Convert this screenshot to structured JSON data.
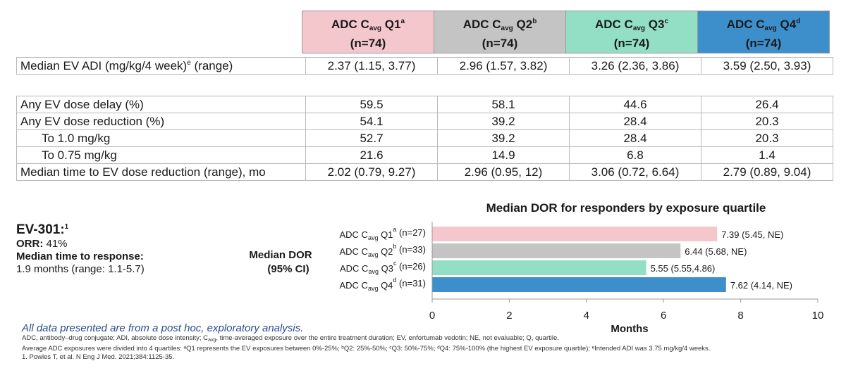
{
  "table": {
    "headers": [
      {
        "pre": "ADC C",
        "sub": "avg",
        "q": " Q1",
        "sup": "a",
        "n": "(n=74)",
        "bg": "#f4c7cd"
      },
      {
        "pre": "ADC C",
        "sub": "avg",
        "q": " Q2",
        "sup": "b",
        "n": "(n=74)",
        "bg": "#c4c4c4"
      },
      {
        "pre": "ADC C",
        "sub": "avg",
        "q": " Q3",
        "sup": "c",
        "n": "(n=74)",
        "bg": "#93dfc6"
      },
      {
        "pre": "ADC C",
        "sub": "avg",
        "q": " Q4",
        "sup": "d",
        "n": "(n=74)",
        "bg": "#3d8fcb"
      }
    ],
    "adi_row": {
      "label": "Median EV ADI (mg/kg/4 week)",
      "label_sup": "e",
      "label_post": " (range)",
      "values": [
        "2.37 (1.15, 3.77)",
        "2.96 (1.57, 3.82)",
        "3.26 (2.36, 3.86)",
        "3.59 (2.50, 3.93)"
      ]
    },
    "rows": [
      {
        "label": "Any EV dose delay (%)",
        "values": [
          "59.5",
          "58.1",
          "44.6",
          "26.4"
        ]
      },
      {
        "label": "Any EV dose reduction (%)",
        "values": [
          "54.1",
          "39.2",
          "28.4",
          "20.3"
        ]
      },
      {
        "label": "To 1.0 mg/kg",
        "values": [
          "52.7",
          "39.2",
          "28.4",
          "20.3"
        ]
      },
      {
        "label": "To 0.75 mg/kg",
        "values": [
          "21.6",
          "14.9",
          "6.8",
          "1.4"
        ]
      },
      {
        "label": "Median time to EV dose reduction (range), mo",
        "values": [
          "2.02 (0.79, 9.27)",
          "2.96 (0.95, 12)",
          "3.06 (0.72, 6.64)",
          "2.79 (0.89, 9.04)"
        ]
      }
    ]
  },
  "ev301": {
    "title": "EV-301:",
    "title_sup": "1",
    "orr_label": "ORR:",
    "orr_value": " 41%",
    "mtr_label": "Median time to response:",
    "mtr_value": "1.9 months (range: 1.1-5.7)"
  },
  "chart_data": {
    "type": "bar",
    "orientation": "horizontal",
    "title": "Median DOR for responders by exposure quartile",
    "ylabel_line1": "Median DOR",
    "ylabel_line2": "(95% CI)",
    "xlabel": "Months",
    "xlim": [
      0,
      10
    ],
    "xticks": [
      "0",
      "2",
      "4",
      "6",
      "8",
      "10"
    ],
    "grid": false,
    "categories": [
      {
        "pre": "ADC C",
        "sub": "avg",
        "q": " Q1",
        "sup": "a",
        "post": " (n=27)"
      },
      {
        "pre": "ADC C",
        "sub": "avg",
        "q": " Q2",
        "sup": "b",
        "post": " (n=33)"
      },
      {
        "pre": "ADC C",
        "sub": "avg",
        "q": " Q3",
        "sup": "c",
        "post": " (n=26)"
      },
      {
        "pre": "ADC C",
        "sub": "avg",
        "q": " Q4",
        "sup": "d",
        "post": " (n=31)"
      }
    ],
    "values": [
      7.39,
      6.44,
      5.55,
      7.62
    ],
    "data_labels": [
      "7.39 (5.45, NE)",
      "6.44 (5.68, NE)",
      "5.55 (5.55,4.86)",
      "7.62 (4.14, NE)"
    ],
    "colors": [
      "#f4c7cd",
      "#c4c4c4",
      "#93dfc6",
      "#3d8fcb"
    ]
  },
  "footnotes": {
    "italic": "All data presented are from a post hoc, exploratory analysis.",
    "abbr_1": "ADC, antibody–drug conjugate; ADI, absolute dose intensity; C",
    "abbr_sub": "avg",
    "abbr_2": ", time-averaged exposure over the entire treatment duration; EV, enfortumab vedotin; NE, not evaluable; Q, quartile.",
    "quartiles": "Average ADC exposures were divided into 4 quartiles: ᵃQ1 represents the EV exposures between 0%-25%; ᵇQ2: 25%-50%; ᶜQ3: 50%-75%; ᵈQ4: 75%-100% (the highest EV exposure quartile); ᵉIntended ADI was 3.75 mg/kg/4 weeks.",
    "ref": "1. Powles T, et al. N Eng J Med. 2021;384:1125-35."
  }
}
